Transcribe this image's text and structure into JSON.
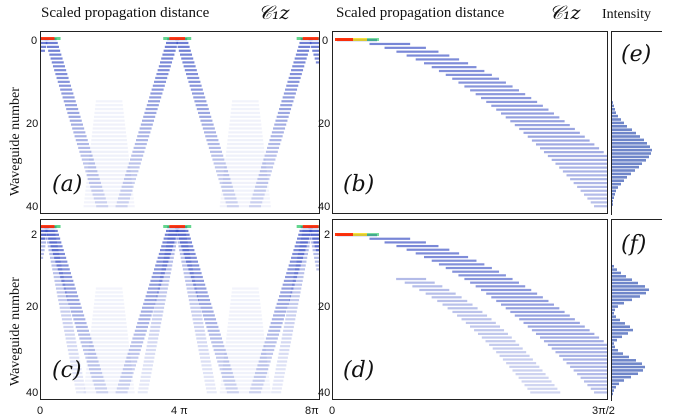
{
  "header": {
    "left_title": "Scaled propagation distance",
    "left_math": "𝒞₁z",
    "right_title": "Scaled propagation distance",
    "right_math": "𝒞₁z",
    "intensity_label": "Intensity"
  },
  "axes": {
    "ylabel_top": "Waveguide number",
    "ylabel_bottom": "Waveguide number",
    "top_left_yticks": [
      "0",
      "20",
      "40"
    ],
    "top_right_yticks": [
      "0",
      "20",
      "40"
    ],
    "bottom_left_yticks": [
      "2",
      "20",
      "40"
    ],
    "bottom_right_yticks": [
      "2",
      "20",
      "40"
    ],
    "left_xticks": [
      "0",
      "4 π",
      "8π"
    ],
    "right_xticks": [
      "0",
      "3π/2"
    ]
  },
  "panels": {
    "a": "(a)",
    "b": "(b)",
    "c": "(c)",
    "d": "(d)",
    "e": "(e)",
    "f": "(f)"
  },
  "colors": {
    "wave": "#3a4fc4",
    "hot": "#ff2a00",
    "bars": "#6f86c9"
  }
}
